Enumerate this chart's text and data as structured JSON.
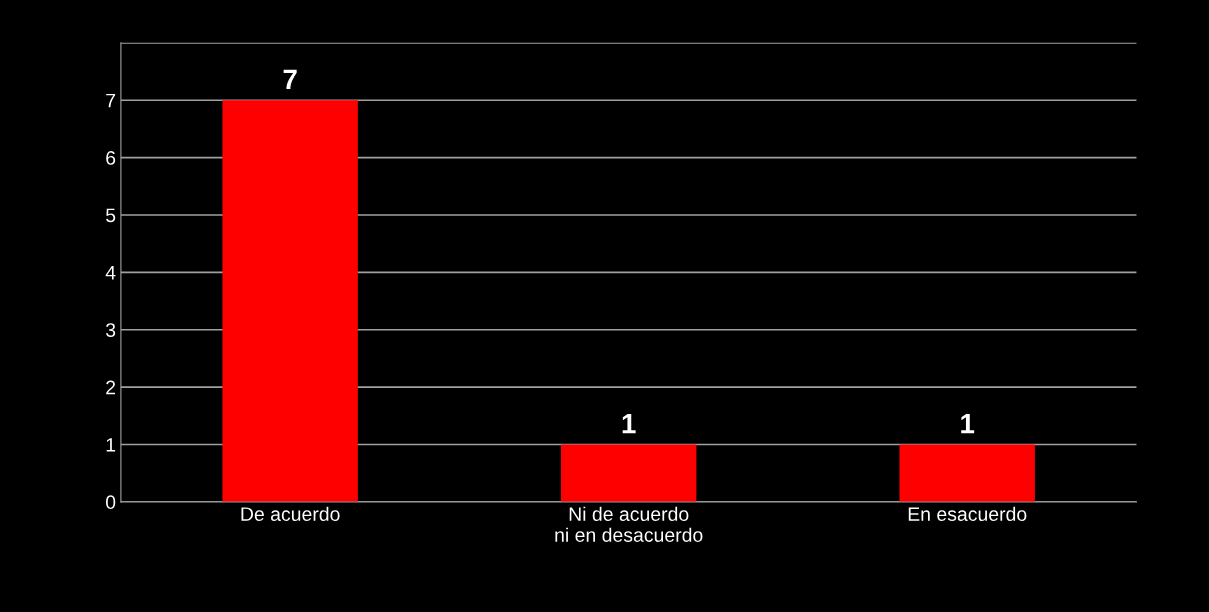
{
  "chart_data": {
    "type": "bar",
    "categories": [
      "De acuerdo",
      "Ni de acuerdo ni en desacuerdo",
      "En esacuerdo"
    ],
    "values": [
      7,
      1,
      1
    ],
    "color": "#ff0000",
    "ylim": [
      0,
      8
    ],
    "yticks": [
      0,
      1,
      2,
      3,
      4,
      5,
      6,
      7,
      {
        "value": 8,
        "label": null
      }
    ],
    "grid": "y",
    "data_labels": true
  }
}
